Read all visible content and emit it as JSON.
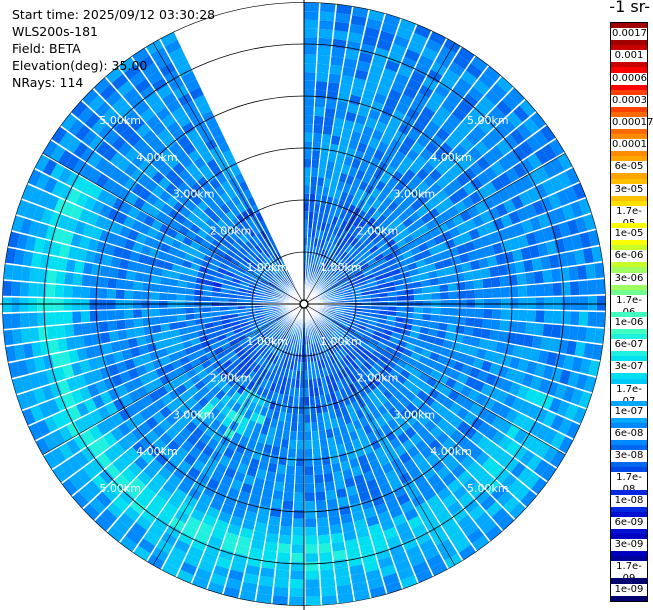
{
  "info": {
    "start_time": "Start time: 2025/09/12 03:30:28",
    "instrument": "WLS200s-181",
    "field": "Field: BETA",
    "elevation": "Elevation(deg): 35.00",
    "nrays": "NRays: 114"
  },
  "colorbar": {
    "title": "-1 sr-",
    "labels": [
      "0.0017",
      "0.001",
      "0.0006",
      "0.0003",
      "0.00017",
      "0.0001",
      "6e-05",
      "3e-05",
      "1.7e-05",
      "1e-05",
      "6e-06",
      "3e-06",
      "1.7e-06",
      "1e-06",
      "6e-07",
      "3e-07",
      "1.7e-07",
      "1e-07",
      "6e-08",
      "3e-08",
      "1.7e-08",
      "1e-08",
      "6e-09",
      "3e-09",
      "1.7e-09",
      "1e-09"
    ],
    "colors": [
      "#a00000",
      "#c80000",
      "#ff0000",
      "#ff4000",
      "#ff6a00",
      "#ff8c00",
      "#ffa500",
      "#ffc000",
      "#ffe000",
      "#ffff00",
      "#c8ff28",
      "#a0ff60",
      "#70ff90",
      "#40ffc0",
      "#20f0e0",
      "#00e0f0",
      "#00c8f8",
      "#00a8ff",
      "#0088ff",
      "#0068f0",
      "#0048e8",
      "#0028e0",
      "#0010d0",
      "#0000c0",
      "#00009a",
      "#000070"
    ]
  },
  "chart_data": {
    "type": "heatmap",
    "projection": "polar PPI",
    "range_unit": "km",
    "range_rings_km": [
      1,
      2,
      3,
      4,
      5
    ],
    "ring_labels": [
      "1.00km",
      "2.00km",
      "3.00km",
      "4.00km",
      "5.00km"
    ],
    "max_range_km": 5.8,
    "beam_count": 114,
    "beam_gap_azimuth_deg": [
      335,
      360
    ],
    "dominant_values": "1e-08 to 3e-08 (blue), local maxima ~6e-08 to 1.7e-07 (cyan) near 4.5–5.2 km in SW–S and W sectors",
    "colormap_range": [
      1e-09,
      0.0017
    ]
  }
}
